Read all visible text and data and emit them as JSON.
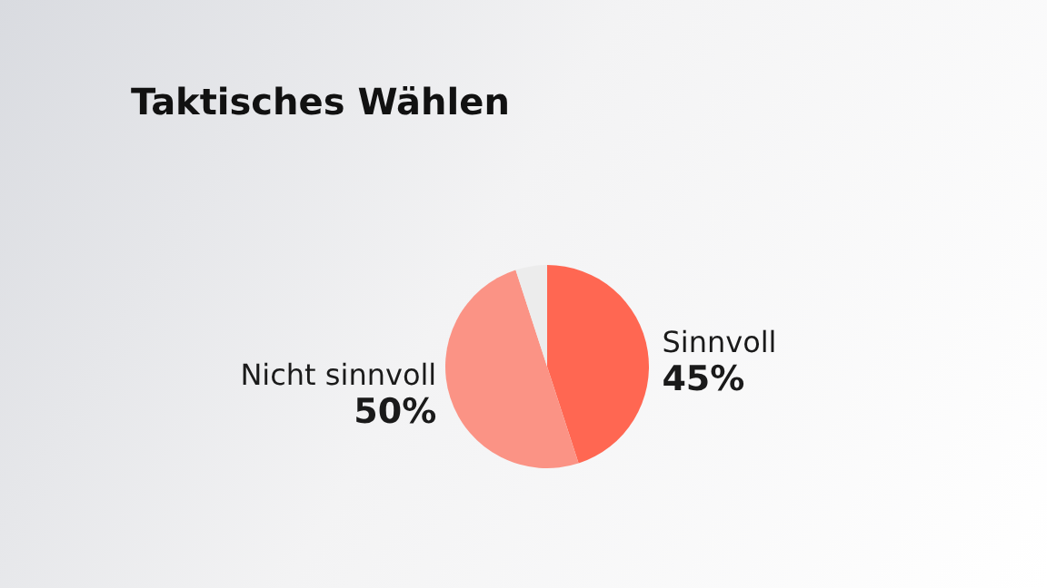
{
  "chart_data": {
    "type": "pie",
    "title": "Taktisches Wählen",
    "categories": [
      "Sinnvoll",
      "Nicht sinnvoll",
      null
    ],
    "values": [
      45,
      50,
      5
    ],
    "colors": [
      "#ff6752",
      "#fb9385",
      "#ececec"
    ],
    "value_labels": [
      "45%",
      "50%",
      null
    ],
    "legend": false
  }
}
